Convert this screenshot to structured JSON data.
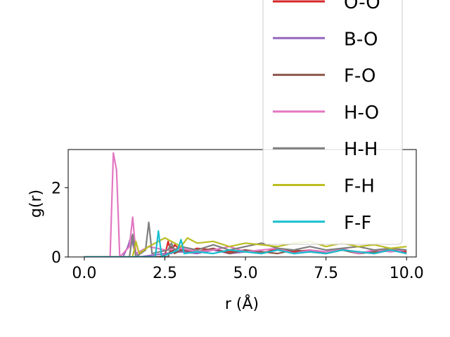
{
  "chart_data": {
    "type": "line",
    "title": "",
    "xlabel": "r (Å)",
    "ylabel": "g(r)",
    "xlim": [
      -0.5,
      10.3
    ],
    "ylim": [
      0,
      3.1
    ],
    "x_ticks": [
      "0.0",
      "2.5",
      "5.0",
      "7.5",
      "10.0"
    ],
    "x_tick_values": [
      0,
      2.5,
      5,
      7.5,
      10
    ],
    "y_ticks": [
      "0",
      "2"
    ],
    "y_tick_values": [
      0,
      2
    ],
    "grid": false,
    "legend_position": "top-right",
    "series": [
      {
        "name": "O-O",
        "color": "#d62728",
        "x": [
          0,
          2.3,
          2.5,
          2.6,
          2.7,
          2.8,
          3.0,
          3.2,
          3.5,
          4.0,
          4.5,
          5.0,
          5.5,
          6.0,
          6.5,
          7.0,
          7.5,
          8.0,
          8.5,
          9.0,
          9.5,
          10.0
        ],
        "y": [
          0,
          0,
          0.05,
          0.45,
          0.1,
          0.35,
          0.2,
          0.15,
          0.25,
          0.2,
          0.15,
          0.2,
          0.1,
          0.25,
          0.15,
          0.2,
          0.1,
          0.2,
          0.15,
          0.1,
          0.2,
          0.15
        ]
      },
      {
        "name": "B-O",
        "color": "#9467bd",
        "x": [
          0,
          1.2,
          1.35,
          1.45,
          1.55,
          1.7,
          2.5,
          3.0,
          3.5,
          4.0,
          4.5,
          5.0,
          5.5,
          6.0,
          6.5,
          7.0,
          7.5,
          8.0,
          8.5,
          9.0,
          9.5,
          10.0
        ],
        "y": [
          0,
          0,
          0.3,
          0.6,
          0.2,
          0,
          0.1,
          0.15,
          0.1,
          0.2,
          0.1,
          0.15,
          0.1,
          0.2,
          0.1,
          0.15,
          0.1,
          0.2,
          0.1,
          0.15,
          0.2,
          0.1
        ]
      },
      {
        "name": "F-O",
        "color": "#8c564b",
        "x": [
          0,
          2.6,
          2.7,
          2.8,
          3.0,
          3.5,
          4.0,
          4.5,
          5.0,
          5.5,
          6.0,
          6.5,
          7.0,
          7.5,
          8.0,
          8.5,
          9.0,
          9.5,
          10.0
        ],
        "y": [
          0,
          0,
          0.3,
          0.1,
          0.2,
          0.15,
          0.25,
          0.1,
          0.2,
          0.15,
          0.1,
          0.2,
          0.15,
          0.1,
          0.2,
          0.1,
          0.15,
          0.2,
          0.1
        ]
      },
      {
        "name": "H-O",
        "color": "#e377c2",
        "x": [
          0,
          0.8,
          0.9,
          1.0,
          1.1,
          1.4,
          1.5,
          1.6,
          2.0,
          2.5,
          3.0,
          3.5,
          4.0,
          4.5,
          5.0,
          5.5,
          6.0,
          6.5,
          7.0,
          7.5,
          8.0,
          8.5,
          9.0,
          9.5,
          10.0
        ],
        "y": [
          0,
          0,
          3.0,
          2.5,
          0,
          0.3,
          1.15,
          0.1,
          0.3,
          0.2,
          0.25,
          0.15,
          0.2,
          0.3,
          0.15,
          0.2,
          0.25,
          0.1,
          0.2,
          0.15,
          0.25,
          0.1,
          0.2,
          0.15,
          0.2
        ]
      },
      {
        "name": "H-H",
        "color": "#7f7f7f",
        "x": [
          0,
          1.4,
          1.5,
          1.6,
          1.9,
          2.0,
          2.1,
          2.6,
          2.7,
          2.8,
          3.0,
          3.5,
          4.0,
          4.5,
          5.0,
          5.5,
          6.0,
          6.5,
          7.0,
          7.5,
          8.0,
          8.5,
          9.0,
          9.5,
          10.0
        ],
        "y": [
          0,
          0,
          0.65,
          0,
          0.2,
          1.0,
          0.1,
          0.2,
          0.4,
          0.2,
          0.3,
          0.2,
          0.35,
          0.2,
          0.3,
          0.4,
          0.25,
          0.2,
          0.3,
          0.2,
          0.25,
          0.3,
          0.2,
          0.25,
          0.2
        ]
      },
      {
        "name": "F-H",
        "color": "#bcbd22",
        "x": [
          0,
          1.5,
          1.6,
          1.7,
          2.0,
          2.5,
          3.0,
          3.2,
          3.5,
          4.0,
          4.5,
          5.0,
          5.5,
          6.0,
          6.5,
          7.0,
          7.5,
          8.0,
          8.5,
          9.0,
          9.5,
          10.0
        ],
        "y": [
          0,
          0,
          0.45,
          0.1,
          0.3,
          0.55,
          0.3,
          0.55,
          0.4,
          0.45,
          0.3,
          0.4,
          0.35,
          0.3,
          0.4,
          0.45,
          0.3,
          0.4,
          0.3,
          0.35,
          0.25,
          0.3
        ]
      },
      {
        "name": "F-F",
        "color": "#17becf",
        "x": [
          0,
          2.2,
          2.3,
          2.4,
          2.9,
          3.0,
          3.1,
          3.5,
          4.0,
          4.5,
          5.0,
          5.5,
          6.0,
          6.5,
          7.0,
          7.5,
          8.0,
          8.5,
          9.0,
          9.5,
          10.0
        ],
        "y": [
          0,
          0,
          0.75,
          0,
          0.2,
          0.5,
          0.1,
          0.15,
          0.1,
          0.2,
          0.15,
          0.1,
          0.2,
          0.1,
          0.15,
          0.1,
          0.2,
          0.15,
          0.1,
          0.2,
          0.1
        ]
      }
    ]
  }
}
